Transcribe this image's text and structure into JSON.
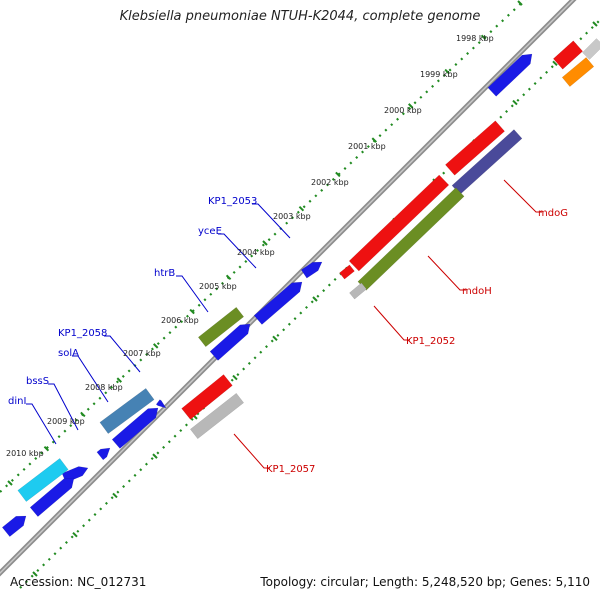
{
  "title": "Klebsiella pneumoniae NTUH-K2044, complete genome",
  "accession_label": "Accession: NC_012731",
  "summary_label": "Topology: circular; Length: 5,248,520 bp; Genes: 5,110",
  "kbp_ticks": [
    {
      "label": "1998 kbp"
    },
    {
      "label": "1999 kbp"
    },
    {
      "label": "2000 kbp"
    },
    {
      "label": "2001 kbp"
    },
    {
      "label": "2002 kbp"
    },
    {
      "label": "2003 kbp"
    },
    {
      "label": "2004 kbp"
    },
    {
      "label": "2005 kbp"
    },
    {
      "label": "2006 kbp"
    },
    {
      "label": "2007 kbp"
    },
    {
      "label": "2008 kbp"
    },
    {
      "label": "2009 kbp"
    },
    {
      "label": "2010 kbp"
    }
  ],
  "gene_labels": {
    "top": [
      "dinI",
      "bssS",
      "solA",
      "KP1_2058",
      "htrB",
      "yceE",
      "KP1_2053"
    ],
    "bottom": [
      "mdoG",
      "mdoH",
      "KP1_2052",
      "KP1_2057"
    ]
  },
  "colors": {
    "gene_blue": "#1a1ae6",
    "rna_red": "#ee1111",
    "cog_green": "#6b8e23",
    "cog_purple": "#4a4a9a",
    "cog_gray": "#b8b8b8",
    "cog_steel": "#4682b4",
    "cog_cyan": "#1ecbf0",
    "cog_orange": "#ff8c00",
    "label_top": "#0000cc",
    "label_bottom": "#cc0000",
    "tick_green": "#228b22"
  }
}
